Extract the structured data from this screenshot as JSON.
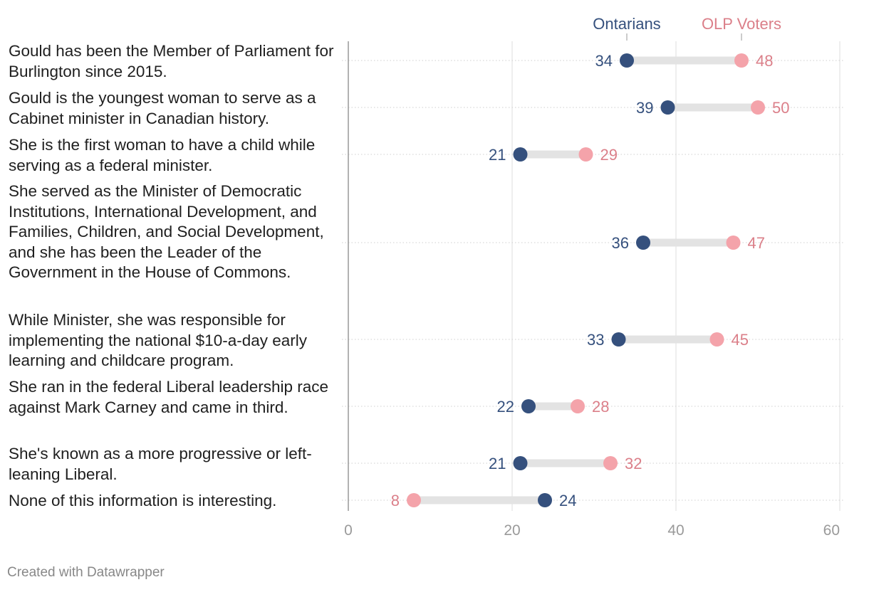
{
  "chart_data": {
    "type": "dot-range",
    "title": "",
    "xlabel": "",
    "ylabel": "",
    "xlim": [
      0,
      60
    ],
    "x_ticks": [
      "0",
      "20",
      "40",
      "60"
    ],
    "grid": true,
    "legend_position": "top",
    "series": [
      {
        "name": "Ontarians",
        "color": "#35507d",
        "values": [
          34,
          39,
          21,
          36,
          33,
          22,
          21,
          24
        ]
      },
      {
        "name": "OLP Voters",
        "color": "#f4a3aa",
        "label_color": "#db7f89",
        "values": [
          48,
          50,
          29,
          47,
          45,
          28,
          32,
          8
        ]
      }
    ],
    "categories": [
      "Gould has been the Member of Parliament for Burlington since 2015.",
      "Gould is the youngest woman to serve as a Cabinet minister in Canadian history.",
      "She is the first woman to have a child while serving as a federal minister.",
      "She served as the Minister of Democratic Institutions, International Development, and Families, Children, and Social Development, and she has been the Leader of the Government in the House of Commons.",
      "While Minister, she was responsible for implementing the national $10-a-day early learning and childcare program.",
      "She ran in the federal Liberal leadership race against Mark Carney and came in third.",
      "She's known as a more progressive or left-leaning Liberal.",
      "None of this information is interesting."
    ]
  },
  "footer": "Created with Datawrapper"
}
